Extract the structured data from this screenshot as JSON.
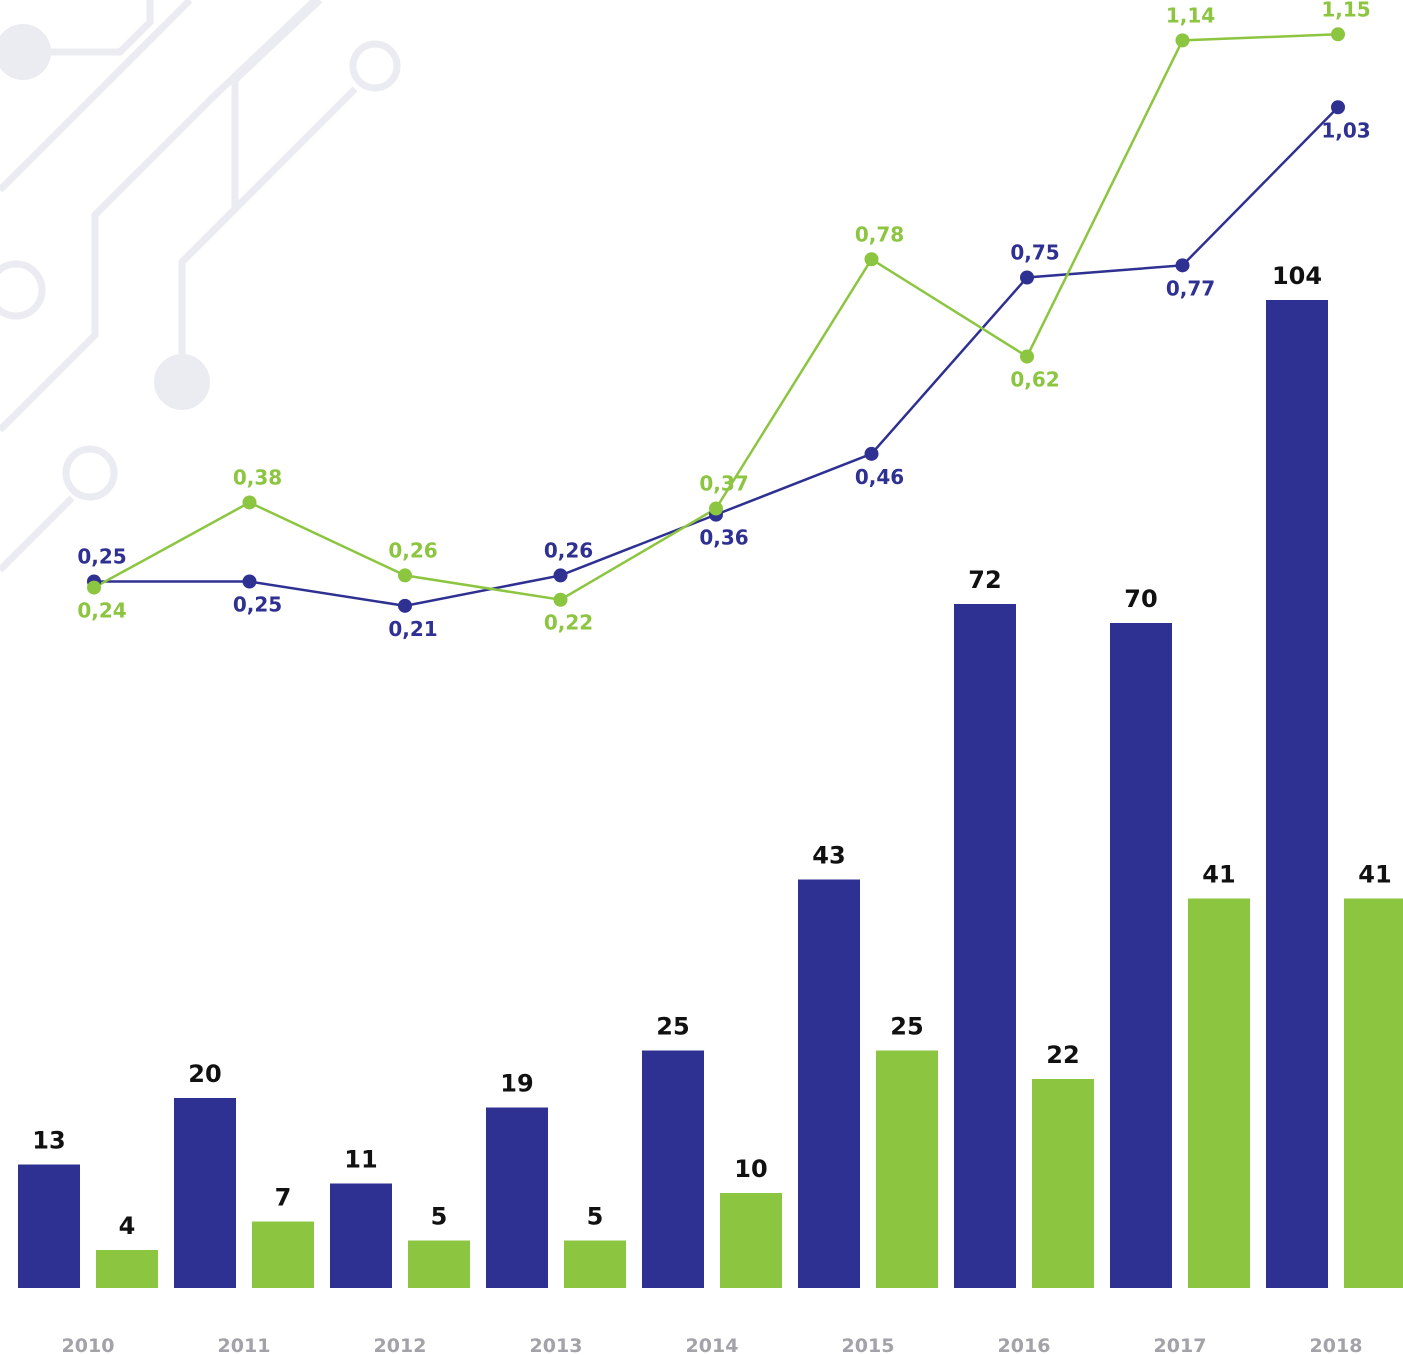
{
  "colors": {
    "series_a": "#2e3092",
    "series_b": "#8cc540",
    "bar_label": "#111111",
    "year_label": "#a2a2a8",
    "decoration": "#ebebf2"
  },
  "chart_data": {
    "type": "bar",
    "categories": [
      "2010",
      "2011",
      "2012",
      "2013",
      "2014",
      "2015",
      "2016",
      "2017",
      "2018"
    ],
    "title": "",
    "xlabel": "",
    "ylabel": "",
    "grid": false,
    "legend": "none",
    "ylim": [
      0,
      110
    ],
    "series": [
      {
        "type": "bar",
        "color": "#2e3092",
        "values": [
          13,
          20,
          11,
          19,
          25,
          43,
          72,
          70,
          104
        ]
      },
      {
        "type": "bar",
        "color": "#8cc540",
        "values": [
          4,
          7,
          5,
          5,
          10,
          25,
          22,
          41,
          41
        ]
      },
      {
        "type": "line",
        "color": "#2e3092",
        "values": [
          0.25,
          0.25,
          0.21,
          0.26,
          0.36,
          0.46,
          0.75,
          0.77,
          1.03
        ],
        "labels": [
          "0,25",
          "0,25",
          "0,21",
          "0,26",
          "0,36",
          "0,46",
          "0,75",
          "0,77",
          "1,03"
        ]
      },
      {
        "type": "line",
        "color": "#8cc540",
        "values": [
          0.24,
          0.38,
          0.26,
          0.22,
          0.37,
          0.78,
          0.62,
          1.14,
          1.15
        ],
        "labels": [
          "0,24",
          "0,38",
          "0,26",
          "0,22",
          "0,37",
          "0,78",
          "0,62",
          "1,14",
          "1,15"
        ]
      }
    ]
  }
}
